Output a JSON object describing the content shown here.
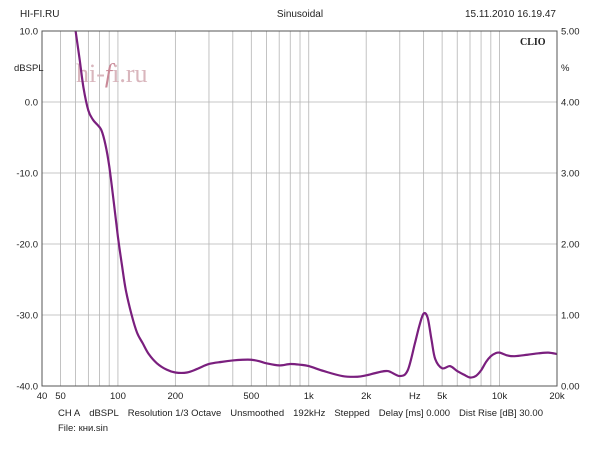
{
  "header": {
    "left": "HI-FI.RU",
    "center": "Sinusoidal",
    "right": "15.11.2010 16.19.47"
  },
  "brand": "CLIO",
  "watermark": {
    "prefix": "hi-",
    "f": "f",
    "suffix": "i.ru"
  },
  "settings": [
    "CH A",
    "dBSPL",
    "Resolution 1/3 Octave",
    "Unsmoothed",
    "192kHz",
    "Stepped",
    "Delay [ms] 0.000",
    "Dist Rise [dB] 30.00"
  ],
  "file_label": "File: кни.sin",
  "colors": {
    "curve": "#7a1f7e",
    "grid": "#b4b4b4",
    "frame": "#555555"
  },
  "chart_data": {
    "type": "line",
    "xscale": "log",
    "xlim": [
      40,
      20000
    ],
    "ylim": [
      -40,
      10
    ],
    "ylim_right": [
      0,
      5
    ],
    "ylabel": "dBSPL",
    "ylabel_right": "%",
    "xlabel": "Hz",
    "x_ticks": [
      {
        "value": 40,
        "label": "40"
      },
      {
        "value": 50,
        "label": "50"
      },
      {
        "value": 100,
        "label": "100"
      },
      {
        "value": 200,
        "label": "200"
      },
      {
        "value": 500,
        "label": "500"
      },
      {
        "value": 1000,
        "label": "1k"
      },
      {
        "value": 2000,
        "label": "2k"
      },
      {
        "value": 5000,
        "label": "5k"
      },
      {
        "value": 10000,
        "label": "10k"
      },
      {
        "value": 20000,
        "label": "20k"
      }
    ],
    "y_ticks": [
      {
        "value": 10,
        "label": "10.0"
      },
      {
        "value": 0,
        "label": "0.0"
      },
      {
        "value": -10,
        "label": "-10.0"
      },
      {
        "value": -20,
        "label": "-20.0"
      },
      {
        "value": -30,
        "label": "-30.0"
      },
      {
        "value": -40,
        "label": "-40.0"
      }
    ],
    "y_ticks_right": [
      "5.00",
      "4.00",
      "3.00",
      "2.00",
      "1.00",
      "0.00"
    ],
    "series": [
      {
        "x": [
          60,
          63,
          66,
          70,
          74,
          78,
          82,
          86,
          90,
          95,
          100,
          105,
          110,
          118,
          126,
          135,
          145,
          160,
          180,
          200,
          230,
          260,
          300,
          350,
          400,
          450,
          500,
          550,
          600,
          700,
          800,
          900,
          1000,
          1200,
          1500,
          1800,
          2000,
          2300,
          2600,
          3000,
          3300,
          3600,
          3800,
          4000,
          4200,
          4400,
          4600,
          5000,
          5500,
          6000,
          6500,
          7000,
          7500,
          8000,
          8500,
          9000,
          9500,
          10000,
          11000,
          12000,
          14000,
          16000,
          18000,
          20000
        ],
        "y": [
          10,
          6,
          2,
          -1.2,
          -2.5,
          -3.2,
          -4,
          -6,
          -9,
          -14,
          -19,
          -23,
          -26.5,
          -30,
          -32.5,
          -34,
          -35.5,
          -36.8,
          -37.7,
          -38.1,
          -38.1,
          -37.6,
          -36.9,
          -36.6,
          -36.4,
          -36.3,
          -36.3,
          -36.5,
          -36.8,
          -37.1,
          -36.9,
          -37,
          -37.2,
          -37.9,
          -38.6,
          -38.7,
          -38.5,
          -38.1,
          -37.9,
          -38.6,
          -37.8,
          -34,
          -31.5,
          -29.8,
          -30.4,
          -33.5,
          -36.2,
          -37.5,
          -37.2,
          -37.9,
          -38.4,
          -38.8,
          -38.6,
          -37.8,
          -36.6,
          -35.8,
          -35.4,
          -35.3,
          -35.7,
          -35.8,
          -35.6,
          -35.4,
          -35.3,
          -35.5
        ]
      }
    ]
  }
}
